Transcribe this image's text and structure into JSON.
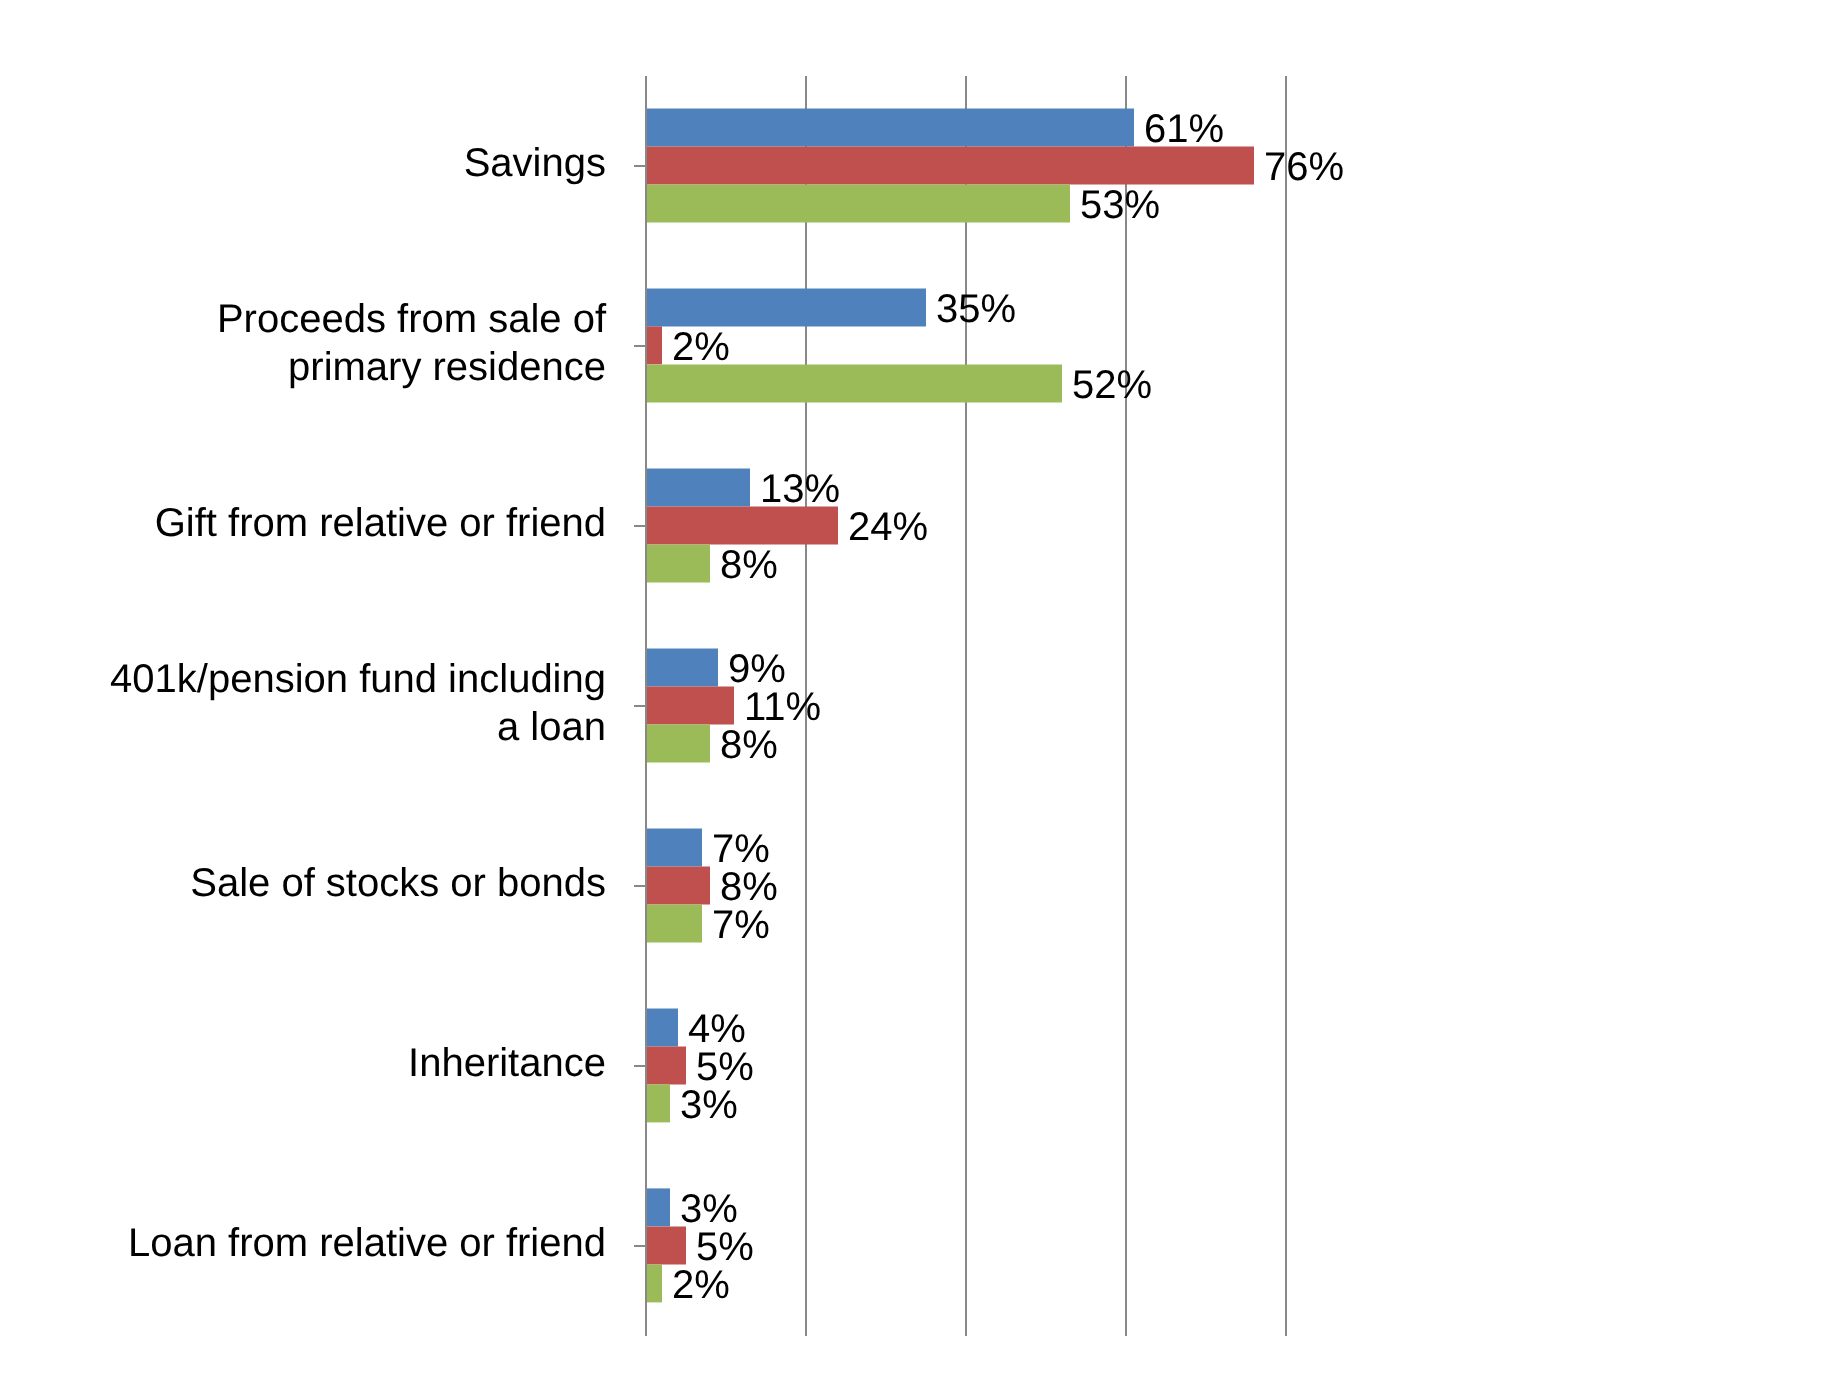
{
  "chart_data": {
    "type": "bar",
    "orientation": "horizontal",
    "categories": [
      "Savings",
      "Proceeds from sale of primary residence",
      "Gift from relative or friend",
      "401k/pension fund including a loan",
      "Sale of stocks or bonds",
      "Inheritance",
      "Loan from relative or friend"
    ],
    "series": [
      {
        "color": "#4f81bd",
        "values": [
          61,
          35,
          13,
          9,
          7,
          4,
          3
        ],
        "value_labels": [
          "61%",
          "35%",
          "13%",
          "9%",
          "7%",
          "4%",
          "3%"
        ]
      },
      {
        "color": "#c0504d",
        "values": [
          76,
          2,
          24,
          11,
          8,
          5,
          5
        ],
        "value_labels": [
          "76%",
          "2%",
          "24%",
          "11%",
          "8%",
          "5%",
          "5%"
        ]
      },
      {
        "color": "#9bbb59",
        "values": [
          53,
          52,
          8,
          8,
          7,
          3,
          2
        ],
        "value_labels": [
          "53%",
          "52%",
          "8%",
          "8%",
          "7%",
          "3%",
          "2%"
        ]
      }
    ],
    "xlim": [
      0,
      80
    ],
    "xticks": [
      {
        "value": 0,
        "label": null
      },
      {
        "value": 20,
        "label": null
      },
      {
        "value": 40,
        "label": null
      },
      {
        "value": 60,
        "label": null
      },
      {
        "value": 80,
        "label": null
      }
    ],
    "grid": "x",
    "tick_labels": "y"
  }
}
